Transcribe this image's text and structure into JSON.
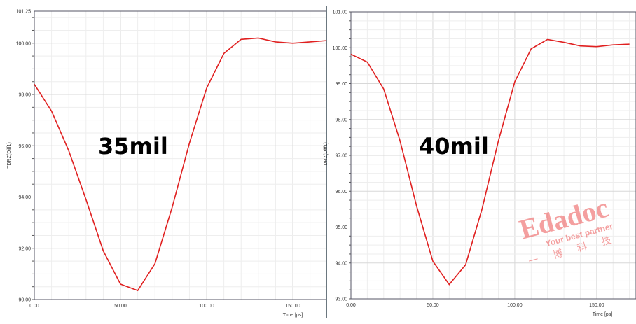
{
  "chart_data": [
    {
      "type": "line",
      "annotation": "35mil",
      "xlabel": "Time [ps]",
      "ylabel": "TDRZ(Diff1)",
      "xlim": [
        0,
        169.5
      ],
      "ylim": [
        90,
        101.25
      ],
      "xticks": [
        "0.00",
        "50.00",
        "100.00",
        "150.00"
      ],
      "yticks": [
        "90.00",
        "92.00",
        "94.00",
        "96.00",
        "98.00",
        "100.00",
        "101.25"
      ],
      "grid": true,
      "color": "#e02020",
      "x": [
        0,
        10,
        20,
        30,
        40,
        50,
        60,
        70,
        80,
        90,
        100,
        110,
        120,
        130,
        140,
        150,
        160,
        170
      ],
      "y": [
        98.4,
        97.35,
        95.8,
        93.9,
        91.9,
        90.6,
        90.35,
        91.4,
        93.6,
        96.1,
        98.25,
        99.6,
        100.15,
        100.2,
        100.05,
        100.0,
        100.05,
        100.1
      ]
    },
    {
      "type": "line",
      "annotation": "40mil",
      "xlabel": "Time [ps]",
      "ylabel": "TDRZ(Diff1)",
      "xlim": [
        0,
        174
      ],
      "ylim": [
        93,
        101
      ],
      "xticks": [
        "0.00",
        "50.00",
        "100.00",
        "150.00"
      ],
      "yticks": [
        "93.00",
        "94.00",
        "95.00",
        "96.00",
        "97.00",
        "98.00",
        "99.00",
        "100.00",
        "101.00"
      ],
      "grid": true,
      "color": "#e02020",
      "x": [
        0,
        10,
        20,
        30,
        40,
        50,
        60,
        70,
        80,
        90,
        100,
        110,
        120,
        130,
        140,
        150,
        160,
        170
      ],
      "y": [
        99.82,
        99.6,
        98.85,
        97.4,
        95.6,
        94.05,
        93.4,
        93.95,
        95.5,
        97.4,
        99.05,
        99.97,
        100.23,
        100.15,
        100.05,
        100.03,
        100.08,
        100.1
      ]
    }
  ],
  "watermark": {
    "brand": "Edadoc",
    "tagline": "Your best partner",
    "chinese": "一博科技"
  }
}
